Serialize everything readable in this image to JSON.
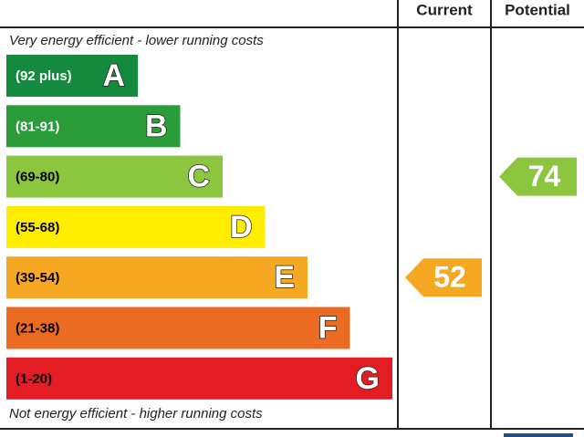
{
  "header": {
    "current": "Current",
    "potential": "Potential"
  },
  "top_note": "Very energy efficient - lower running costs",
  "bottom_note": "Not energy efficient - higher running costs",
  "bands": [
    {
      "range": "(92 plus)",
      "letter": "A",
      "color": "#138a3e",
      "text_color": "#ffffff"
    },
    {
      "range": "(81-91)",
      "letter": "B",
      "color": "#2a9c3a",
      "text_color": "#ffffff"
    },
    {
      "range": "(69-80)",
      "letter": "C",
      "color": "#8cc63f",
      "text_color": "#000000"
    },
    {
      "range": "(55-68)",
      "letter": "D",
      "color": "#ffed00",
      "text_color": "#000000"
    },
    {
      "range": "(39-54)",
      "letter": "E",
      "color": "#f7a823",
      "text_color": "#000000"
    },
    {
      "range": "(21-38)",
      "letter": "F",
      "color": "#ec6b23",
      "text_color": "#000000"
    },
    {
      "range": "(1-20)",
      "letter": "G",
      "color": "#e31d23",
      "text_color": "#000000"
    }
  ],
  "current": 52,
  "potential": 74
}
